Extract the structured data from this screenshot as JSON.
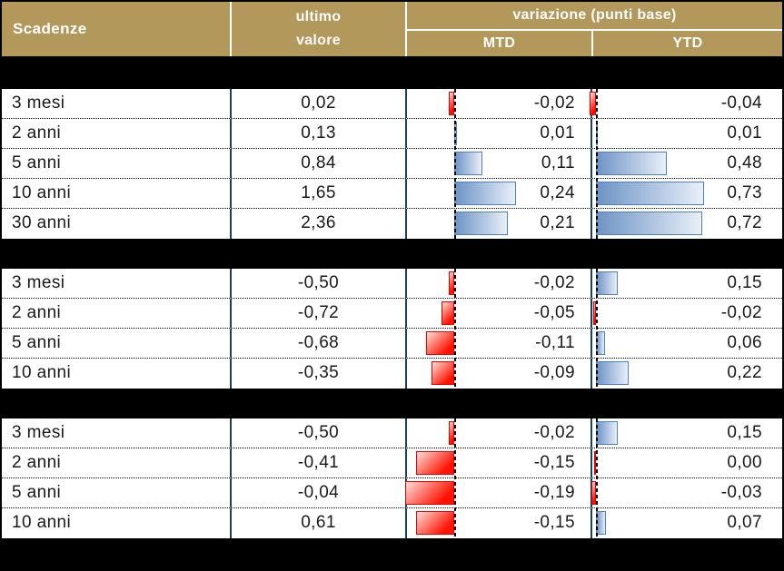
{
  "header": {
    "scadenze": "Scadenze",
    "ultimo_line1": "ultimo",
    "ultimo_line2": "valore",
    "variazione": "variazione (punti base)",
    "mtd": "MTD",
    "ytd": "YTD"
  },
  "colors": {
    "header_bg": "#b3985c",
    "column_line": "#1c3f5e",
    "bar_positive_border": "#4f81bd",
    "bar_positive_dark": "#6d93c5",
    "bar_positive_light": "#e9eff8",
    "bar_negative_border": "#e60000",
    "bar_negative_dark": "#ff1200",
    "bar_negative_light": "#ffe0da",
    "divider": "#000000"
  },
  "bars": {
    "mtd_axis": 498,
    "mtd_scale": 283,
    "ytd_axis": 654,
    "ytd_scale": 163,
    "min_width": 2
  },
  "sections": [
    {
      "rows": [
        {
          "label": "3 mesi",
          "value": "0,02",
          "mtd": "-0,02",
          "mtd_num": -0.02,
          "ytd": "-0,04",
          "ytd_num": -0.04
        },
        {
          "label": "2 anni",
          "value": "0,13",
          "mtd": "0,01",
          "mtd_num": 0.01,
          "ytd": "0,01",
          "ytd_num": 0.01
        },
        {
          "label": "5 anni",
          "value": "0,84",
          "mtd": "0,11",
          "mtd_num": 0.11,
          "ytd": "0,48",
          "ytd_num": 0.48
        },
        {
          "label": "10 anni",
          "value": "1,65",
          "mtd": "0,24",
          "mtd_num": 0.24,
          "ytd": "0,73",
          "ytd_num": 0.73
        },
        {
          "label": "30 anni",
          "value": "2,36",
          "mtd": "0,21",
          "mtd_num": 0.21,
          "ytd": "0,72",
          "ytd_num": 0.72
        }
      ]
    },
    {
      "rows": [
        {
          "label": "3 mesi",
          "value": "-0,50",
          "mtd": "-0,02",
          "mtd_num": -0.02,
          "ytd": "0,15",
          "ytd_num": 0.15
        },
        {
          "label": "2 anni",
          "value": "-0,72",
          "mtd": "-0,05",
          "mtd_num": -0.05,
          "ytd": "-0,02",
          "ytd_num": -0.02
        },
        {
          "label": "5 anni",
          "value": "-0,68",
          "mtd": "-0,11",
          "mtd_num": -0.11,
          "ytd": "0,06",
          "ytd_num": 0.06
        },
        {
          "label": "10 anni",
          "value": "-0,35",
          "mtd": "-0,09",
          "mtd_num": -0.09,
          "ytd": "0,22",
          "ytd_num": 0.22
        }
      ]
    },
    {
      "rows": [
        {
          "label": "3 mesi",
          "value": "-0,50",
          "mtd": "-0,02",
          "mtd_num": -0.02,
          "ytd": "0,15",
          "ytd_num": 0.15
        },
        {
          "label": "2 anni",
          "value": "-0,41",
          "mtd": "-0,15",
          "mtd_num": -0.15,
          "ytd": "0,00",
          "ytd_num": 0.0
        },
        {
          "label": "5 anni",
          "value": "-0,04",
          "mtd": "-0,19",
          "mtd_num": -0.19,
          "ytd": "-0,03",
          "ytd_num": -0.03
        },
        {
          "label": "10 anni",
          "value": "0,61",
          "mtd": "-0,15",
          "mtd_num": -0.15,
          "ytd": "0,07",
          "ytd_num": 0.07
        }
      ]
    }
  ],
  "chart_data": {
    "type": "table",
    "title": "variazione (punti base)",
    "columns": [
      "Scadenze",
      "ultimo valore",
      "variazione MTD (punti base)",
      "variazione YTD (punti base)"
    ],
    "bar_encoding": {
      "positive": "blue bar right of dashed axis",
      "negative": "red bar left of dashed axis"
    },
    "sections": [
      {
        "rows": [
          [
            "3 mesi",
            0.02,
            -0.02,
            -0.04
          ],
          [
            "2 anni",
            0.13,
            0.01,
            0.01
          ],
          [
            "5 anni",
            0.84,
            0.11,
            0.48
          ],
          [
            "10 anni",
            1.65,
            0.24,
            0.73
          ],
          [
            "30 anni",
            2.36,
            0.21,
            0.72
          ]
        ]
      },
      {
        "rows": [
          [
            "3 mesi",
            -0.5,
            -0.02,
            0.15
          ],
          [
            "2 anni",
            -0.72,
            -0.05,
            -0.02
          ],
          [
            "5 anni",
            -0.68,
            -0.11,
            0.06
          ],
          [
            "10 anni",
            -0.35,
            -0.09,
            0.22
          ]
        ]
      },
      {
        "rows": [
          [
            "3 mesi",
            -0.5,
            -0.02,
            0.15
          ],
          [
            "2 anni",
            -0.41,
            -0.15,
            0.0
          ],
          [
            "5 anni",
            -0.04,
            -0.19,
            -0.03
          ],
          [
            "10 anni",
            0.61,
            -0.15,
            0.07
          ]
        ]
      }
    ]
  }
}
